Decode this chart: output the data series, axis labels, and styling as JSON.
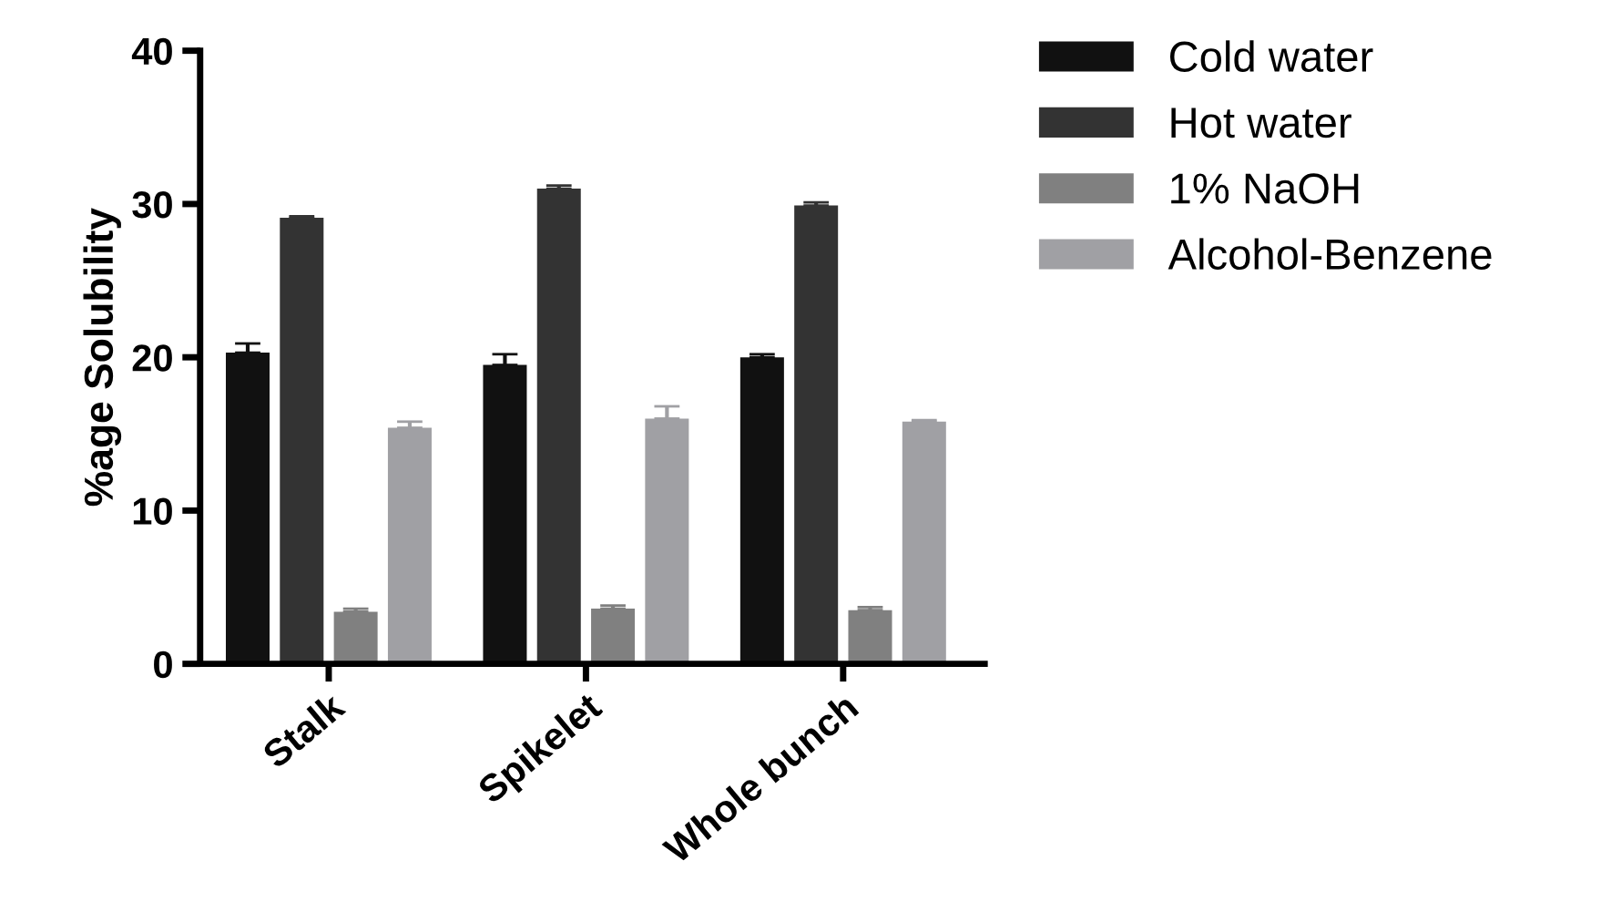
{
  "chart_data": {
    "type": "bar",
    "ylabel": "%age Solubility",
    "categories": [
      "Stalk",
      "Spikelet",
      "Whole bunch"
    ],
    "series": [
      {
        "name": "Cold water",
        "color": "#111111",
        "values": [
          20.3,
          19.5,
          20.0
        ],
        "errors": [
          [
            20.3,
            20.9
          ],
          [
            19.5,
            20.2
          ],
          [
            20.0,
            20.2
          ]
        ]
      },
      {
        "name": "Hot water",
        "color": "#333333",
        "values": [
          29.1,
          31.0,
          29.9
        ],
        "errors": [
          [
            29.1,
            29.2
          ],
          [
            31.0,
            31.2
          ],
          [
            29.9,
            30.1
          ]
        ]
      },
      {
        "name": "1% NaOH",
        "color": "#808080",
        "values": [
          3.4,
          3.6,
          3.5
        ],
        "errors": [
          [
            3.4,
            3.6
          ],
          [
            3.6,
            3.8
          ],
          [
            3.5,
            3.7
          ]
        ]
      },
      {
        "name": "Alcohol-Benzene",
        "color": "#a0a0a4",
        "values": [
          15.4,
          16.0,
          15.8
        ],
        "errors": [
          [
            15.4,
            15.8
          ],
          [
            16.0,
            16.8
          ],
          [
            15.8,
            15.9
          ]
        ]
      }
    ],
    "ylim": [
      0,
      40
    ],
    "yticks": [
      0,
      10,
      20,
      30,
      40
    ],
    "grid": false,
    "legend": "top right"
  }
}
